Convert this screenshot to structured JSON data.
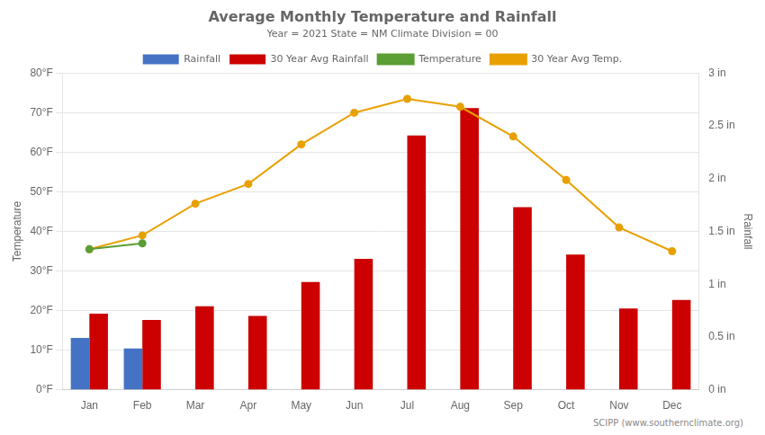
{
  "chart_data": {
    "type": "bar",
    "title": "Average Monthly Temperature and Rainfall",
    "subtitle": "Year = 2021 State = NM Climate Division = 00",
    "annotations": [
      "SCIPP (www.southernclimate.org)"
    ],
    "categories": [
      "Jan",
      "Feb",
      "Mar",
      "Apr",
      "May",
      "Jun",
      "Jul",
      "Aug",
      "Sep",
      "Oct",
      "Nov",
      "Dec"
    ],
    "series": [
      {
        "name": "Rainfall",
        "type": "bar",
        "axis": "y2",
        "color": "#4472c4",
        "values": [
          0.49,
          0.39,
          null,
          null,
          null,
          null,
          null,
          null,
          null,
          null,
          null,
          null
        ]
      },
      {
        "name": "30 Year Avg Rainfall",
        "type": "bar",
        "axis": "y2",
        "color": "#cc0000",
        "values": [
          0.72,
          0.66,
          0.79,
          0.7,
          1.02,
          1.24,
          2.41,
          2.67,
          1.73,
          1.28,
          0.77,
          0.85
        ]
      },
      {
        "name": "Temperature",
        "type": "line",
        "color": "#5a9e35",
        "marker": "circle",
        "values": [
          35.5,
          37.0,
          null,
          null,
          null,
          null,
          null,
          null,
          null,
          null,
          null,
          null
        ]
      },
      {
        "name": "30 Year Avg Temp.",
        "type": "line",
        "color": "#e8a000",
        "marker": "circle",
        "values": [
          35.5,
          39.0,
          47.0,
          52.0,
          62.0,
          70.0,
          73.5,
          71.5,
          64.0,
          53.0,
          41.0,
          35.0
        ]
      }
    ],
    "ylabel": "Temperature",
    "y2label": "Rainfall",
    "ylim": [
      0,
      80
    ],
    "yticks": [
      {
        "value": 0,
        "label": "0°F"
      },
      {
        "value": 10,
        "label": "10°F"
      },
      {
        "value": 20,
        "label": "20°F"
      },
      {
        "value": 30,
        "label": "30°F"
      },
      {
        "value": 40,
        "label": "40°F"
      },
      {
        "value": 50,
        "label": "50°F"
      },
      {
        "value": 60,
        "label": "60°F"
      },
      {
        "value": 70,
        "label": "70°F"
      },
      {
        "value": 80,
        "label": "80°F"
      }
    ],
    "y2lim": [
      0,
      3
    ],
    "y2ticks": [
      {
        "value": 0,
        "label": "0 in"
      },
      {
        "value": 0.5,
        "label": "0.5 in"
      },
      {
        "value": 1.0,
        "label": "1 in"
      },
      {
        "value": 1.5,
        "label": "1.5 in"
      },
      {
        "value": 2.0,
        "label": "2 in"
      },
      {
        "value": 2.5,
        "label": "2.5 in"
      },
      {
        "value": 3.0,
        "label": "3 in"
      }
    ],
    "grid": "y",
    "legend": "top"
  }
}
